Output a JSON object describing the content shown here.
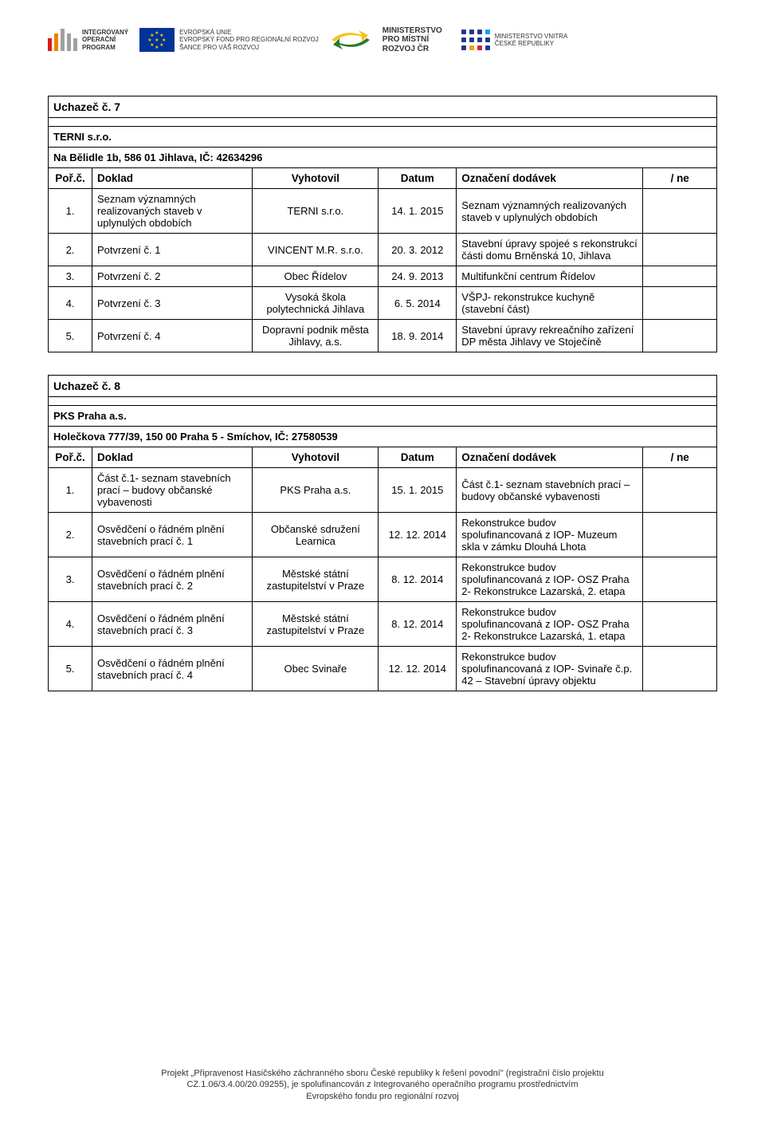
{
  "header": {
    "iop": {
      "line1": "INTEGROVANÝ",
      "line2": "OPERAČNÍ",
      "line3": "PROGRAM",
      "bars": [
        "#e01818",
        "#f08000",
        "#ffe000",
        "#9bd400",
        "#3db400"
      ]
    },
    "eu": {
      "line1": "EVROPSKÁ UNIE",
      "line2": "EVROPSKÝ FOND PRO REGIONÁLNÍ ROZVOJ",
      "line3": "ŠANCE PRO VÁŠ ROZVOJ"
    },
    "mmr": {
      "line1": "MINISTERSTVO",
      "line2": "PRO MÍSTNÍ",
      "line3": "ROZVOJ ČR"
    },
    "mvcr": {
      "line1": "MINISTERSTVO VNITRA",
      "line2": "ČESKÉ REPUBLIKY"
    },
    "dot_colors": [
      "#1e3a8a",
      "#1e3a8a",
      "#1e3a8a",
      "#0ea5e9",
      "#1e3a8a",
      "#1e3a8a",
      "#1e3a8a",
      "#1e3a8a",
      "#1e3a8a",
      "#f59e0b",
      "#dc2626",
      "#1e3a8a"
    ]
  },
  "table7": {
    "title": "Uchazeč č. 7",
    "company": "TERNI s.r.o.",
    "address": "Na Bělidle 1b, 586 01 Jihlava, IČ: 42634296",
    "headers": {
      "n": "Poř.č.",
      "doklad": "Doklad",
      "vyhotovil": "Vyhotovil",
      "datum": "Datum",
      "oznaceni": "Označení dodávek",
      "result": " / ne"
    },
    "rows": [
      {
        "n": "1.",
        "doklad": "Seznam významných realizovaných staveb v uplynulých obdobích",
        "vyh": "TERNI s.r.o.",
        "dat": "14. 1. 2015",
        "ozn": "Seznam významných realizovaných staveb v uplynulých obdobích",
        "res": ""
      },
      {
        "n": "2.",
        "doklad": "Potvrzení č. 1",
        "vyh": "VINCENT M.R. s.r.o.",
        "dat": "20. 3. 2012",
        "ozn": "Stavební úpravy spojeé s rekonstrukcí části domu Brněnská 10, Jihlava",
        "res": ""
      },
      {
        "n": "3.",
        "doklad": "Potvrzení č. 2",
        "vyh": "Obec Řídelov",
        "dat": "24. 9. 2013",
        "ozn": "Multifunkční centrum Řídelov",
        "res": ""
      },
      {
        "n": "4.",
        "doklad": "Potvrzení č. 3",
        "vyh": "Vysoká škola polytechnická Jihlava",
        "dat": "6. 5. 2014",
        "ozn": "VŠPJ- rekonstrukce kuchyně (stavební část)",
        "res": ""
      },
      {
        "n": "5.",
        "doklad": "Potvrzení č. 4",
        "vyh": "Dopravní podnik města Jihlavy, a.s.",
        "dat": "18. 9. 2014",
        "ozn": "Stavební úpravy rekreačního zařízení DP města Jihlavy ve Stoječíně",
        "res": ""
      }
    ]
  },
  "table8": {
    "title": "Uchazeč č. 8",
    "company": "PKS Praha a.s.",
    "address": "Holečkova 777/39, 150 00 Praha 5 - Smíchov, IČ: 27580539",
    "headers": {
      "n": "Poř.č.",
      "doklad": "Doklad",
      "vyhotovil": "Vyhotovil",
      "datum": "Datum",
      "oznaceni": "Označení dodávek",
      "result": " / ne"
    },
    "rows": [
      {
        "n": "1.",
        "doklad": "Část č.1- seznam stavebních prací – budovy občanské vybavenosti",
        "vyh": "PKS Praha a.s.",
        "dat": "15. 1. 2015",
        "ozn": "Část č.1- seznam stavebních prací – budovy občanské vybavenosti",
        "res": ""
      },
      {
        "n": "2.",
        "doklad": "Osvědčení o řádném plnění stavebních prací č. 1",
        "vyh": "Občanské sdružení Learnica",
        "dat": "12. 12. 2014",
        "ozn": "Rekonstrukce budov spolufinancovaná z IOP- Muzeum skla v zámku Dlouhá Lhota",
        "res": ""
      },
      {
        "n": "3.",
        "doklad": "Osvědčení o řádném plnění stavebních prací č. 2",
        "vyh": "Městské státní zastupitelství v Praze",
        "dat": "8. 12. 2014",
        "ozn": "Rekonstrukce budov spolufinancovaná z IOP- OSZ Praha 2- Rekonstrukce Lazarská, 2. etapa",
        "res": ""
      },
      {
        "n": "4.",
        "doklad": "Osvědčení o řádném plnění stavebních prací č. 3",
        "vyh": "Městské státní zastupitelství v Praze",
        "dat": "8. 12. 2014",
        "ozn": "Rekonstrukce budov spolufinancovaná z IOP- OSZ Praha 2- Rekonstrukce Lazarská, 1. etapa",
        "res": ""
      },
      {
        "n": "5.",
        "doklad": "Osvědčení o řádném plnění stavebních prací č. 4",
        "vyh": "Obec Svinaře",
        "dat": "12. 12. 2014",
        "ozn": "Rekonstrukce budov spolufinancovaná z IOP- Svinaře č.p. 42 – Stavební úpravy objektu",
        "res": ""
      }
    ]
  },
  "footer": {
    "l1": "Projekt „Připravenost Hasičského záchranného sboru České republiky k řešení povodní\" (registrační číslo projektu",
    "l2": "CZ.1.06/3.4.00/20.09255), je spolufinancován z Integrovaného operačního programu prostřednictvím",
    "l3": "Evropského fondu pro regionální rozvoj"
  }
}
